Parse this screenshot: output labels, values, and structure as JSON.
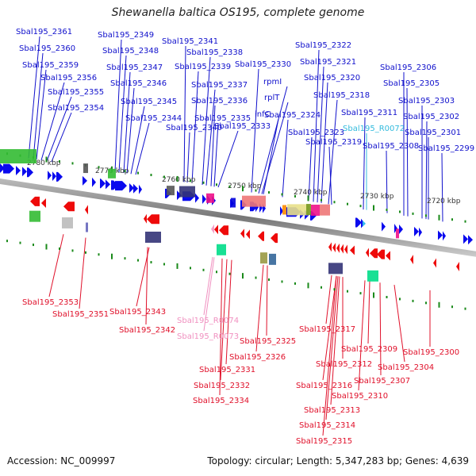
{
  "title": "Shewanella baltica OS195, complete genome",
  "footer": {
    "accession": "Accession: NC_009997",
    "summary": "Topology: circular; Length: 5,347,283 bp; Genes: 4,639"
  },
  "colors": {
    "forward_label": "#1010cc",
    "reverse_label": "#e0102a",
    "rna_forward_label": "#33bbdd",
    "rna_reverse_label": "#f090c0",
    "forward_gene": "#0a0aee",
    "reverse_gene": "#ee0a0a",
    "tick": "#1a8a1a",
    "backbone": "#888888"
  },
  "ticks": [
    "2780 kbp",
    "2770 kbp",
    "2760 kbp",
    "2750 kbp",
    "2740 kbp",
    "2730 kbp",
    "2720 kbp"
  ],
  "forward_labels": [
    "Sbal195_2361",
    "Sbal195_2360",
    "Sbal195_2359",
    "Sbal195_2356",
    "Sbal195_2355",
    "Sbal195_2354",
    "Sbal195_2349",
    "Sbal195_2348",
    "Sbal195_2347",
    "Sbal195_2346",
    "Sbal195_2345",
    "Sbal195_2344",
    "Sbal195_2341",
    "Sbal195_2338",
    "Sbal195_2339",
    "Sbal195_2337",
    "Sbal195_2336",
    "Sbal195_2335",
    "Sbal195_2340",
    "Sbal195_2333",
    "Sbal195_2330",
    "rpmI",
    "rplT",
    "infC",
    "Sbal195_2324",
    "Sbal195_2323",
    "Sbal195_2322",
    "Sbal195_2321",
    "Sbal195_2320",
    "Sbal195_2318",
    "Sbal195_2319",
    "Sbal195_2311",
    "Sbal195_R0072",
    "Sbal195_2308",
    "Sbal195_2306",
    "Sbal195_2305",
    "Sbal195_2303",
    "Sbal195_2302",
    "Sbal195_2301",
    "Sbal195_2299"
  ],
  "reverse_labels": [
    "Sbal195_2353",
    "Sbal195_2351",
    "Sbal195_2343",
    "Sbal195_2342",
    "Sbal195_R0074",
    "Sbal195_R0073",
    "Sbal195_2325",
    "Sbal195_2326",
    "Sbal195_2331",
    "Sbal195_2332",
    "Sbal195_2334",
    "Sbal195_2317",
    "Sbal195_2309",
    "Sbal195_2300",
    "Sbal195_2312",
    "Sbal195_2304",
    "Sbal195_2307",
    "Sbal195_2316",
    "Sbal195_2310",
    "Sbal195_2313",
    "Sbal195_2314",
    "Sbal195_2315"
  ]
}
